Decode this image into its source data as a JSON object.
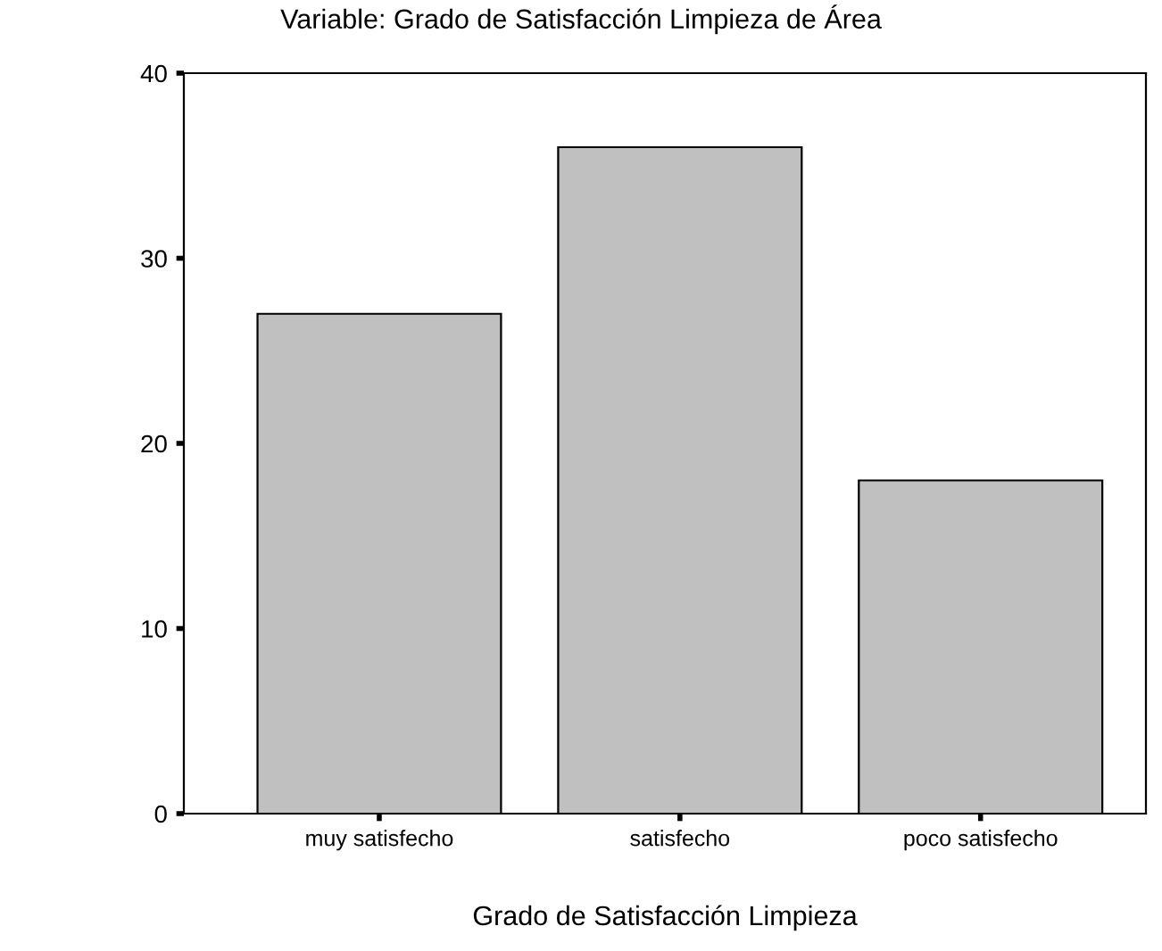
{
  "chart_data": {
    "type": "bar",
    "title": "Variable: Grado de Satisfacción Limpieza de Área",
    "xlabel": "Grado de Satisfacción Limpieza",
    "categories": [
      "muy satisfecho",
      "satisfecho",
      "poco satisfecho"
    ],
    "values": [
      27,
      36,
      18
    ],
    "color": "#c0c0c0",
    "ylim": [
      0,
      40
    ],
    "yticks": [
      0,
      10,
      20,
      30,
      40
    ],
    "grid": false,
    "legend": false
  }
}
